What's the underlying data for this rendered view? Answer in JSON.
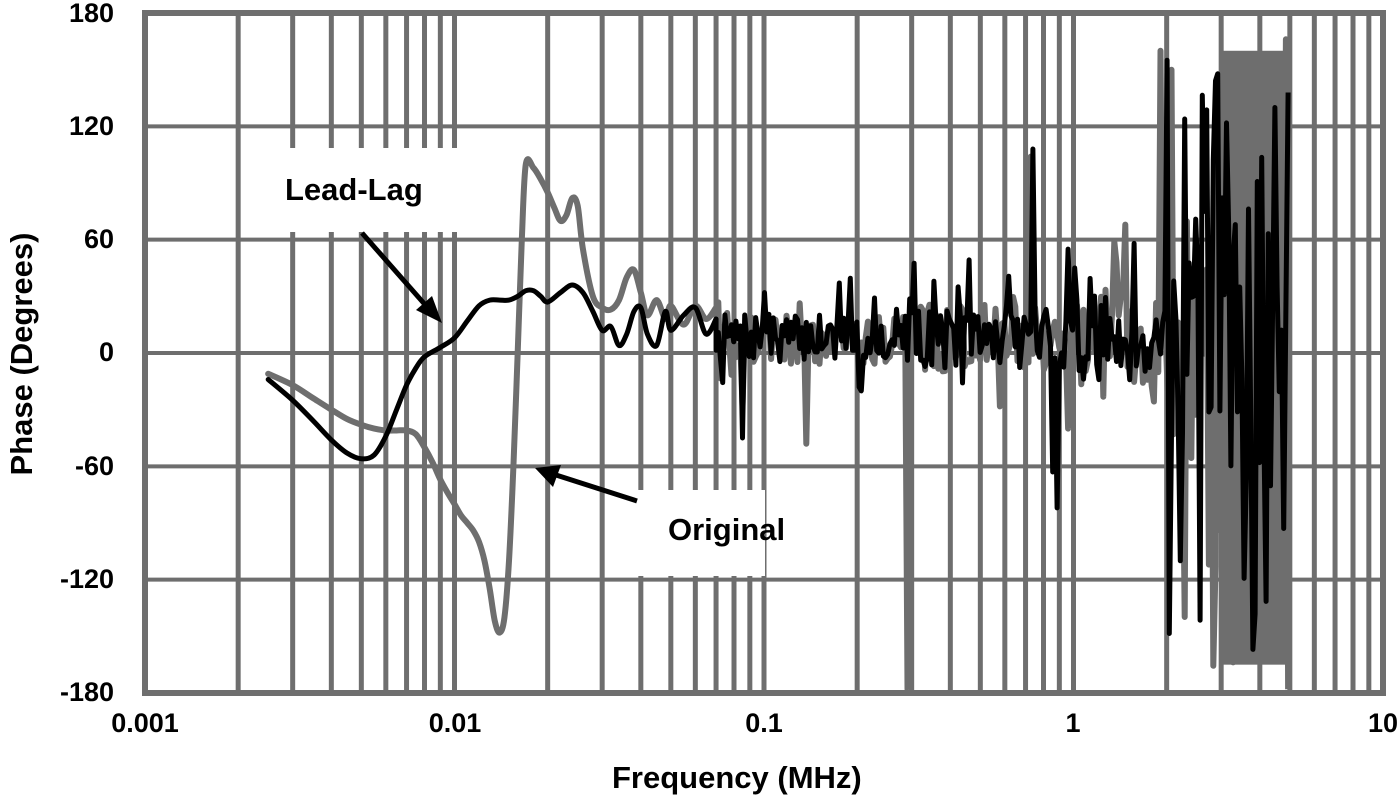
{
  "chart_data": {
    "type": "line",
    "title": "",
    "xlabel": "Frequency (MHz)",
    "ylabel": "Phase (Degrees)",
    "xscale": "log",
    "xlim": [
      0.001,
      10
    ],
    "ylim": [
      -180,
      180
    ],
    "grid": true,
    "legend": "none (inline annotations with arrows)",
    "x_ticks": [
      "0.001",
      "0.01",
      "0.1",
      "1",
      "10"
    ],
    "y_ticks": [
      "180",
      "120",
      "60",
      "0",
      "-60",
      "-120",
      "-180"
    ],
    "annotations": [
      {
        "text": "Lead-Lag",
        "points_to": "black curve near 0.0098 MHz, ~18°"
      },
      {
        "text": "Original",
        "points_to": "gray curve near 0.015 MHz, -60°"
      }
    ],
    "series": [
      {
        "name": "Lead-Lag",
        "color": "#000000",
        "smooth_x": [
          0.0025,
          0.003,
          0.0035,
          0.004,
          0.0045,
          0.005,
          0.0055,
          0.006,
          0.0065,
          0.007,
          0.0075,
          0.008,
          0.009,
          0.01,
          0.011,
          0.012,
          0.013,
          0.014,
          0.015,
          0.016,
          0.017,
          0.018,
          0.019,
          0.02,
          0.022,
          0.024,
          0.026,
          0.028,
          0.03,
          0.032,
          0.034,
          0.036,
          0.038,
          0.04,
          0.042,
          0.045,
          0.048,
          0.05,
          0.055,
          0.06,
          0.065,
          0.07
        ],
        "smooth_y": [
          -14,
          -25,
          -36,
          -46,
          -53,
          -56,
          -54,
          -44,
          -30,
          -17,
          -8,
          -2,
          3,
          8,
          17,
          25,
          28,
          28,
          28,
          30,
          33,
          33,
          30,
          27,
          32,
          36,
          32,
          22,
          12,
          14,
          4,
          10,
          22,
          24,
          10,
          4,
          22,
          12,
          20,
          24,
          10,
          18
        ],
        "noise_from_mhz": 0.07,
        "noise_to_mhz": 5,
        "spikes": [
          {
            "x": 0.085,
            "y": -45
          },
          {
            "x": 0.1,
            "y": 32
          },
          {
            "x": 0.15,
            "y": 20
          },
          {
            "x": 0.2,
            "y": -18
          },
          {
            "x": 0.35,
            "y": 38
          },
          {
            "x": 0.42,
            "y": 35
          },
          {
            "x": 0.6,
            "y": 25
          },
          {
            "x": 0.73,
            "y": 108
          },
          {
            "x": 0.85,
            "y": -63
          },
          {
            "x": 0.88,
            "y": -82
          },
          {
            "x": 0.95,
            "y": 55
          },
          {
            "x": 1.0,
            "y": 45
          },
          {
            "x": 1.55,
            "y": 58
          },
          {
            "x": 1.98,
            "y": 155
          },
          {
            "x": 2.2,
            "y": -110
          }
        ]
      },
      {
        "name": "Original",
        "color": "#6e6e6e",
        "smooth_x": [
          0.0025,
          0.003,
          0.0035,
          0.004,
          0.0045,
          0.005,
          0.0055,
          0.006,
          0.0065,
          0.007,
          0.0075,
          0.008,
          0.0085,
          0.009,
          0.0095,
          0.01,
          0.0105,
          0.011,
          0.0115,
          0.012,
          0.0125,
          0.013,
          0.0135,
          0.014,
          0.0145,
          0.015,
          0.0155,
          0.016,
          0.0165,
          0.017,
          0.018,
          0.019,
          0.02,
          0.021,
          0.022,
          0.023,
          0.024,
          0.025,
          0.026,
          0.028,
          0.03,
          0.032,
          0.034,
          0.036,
          0.038,
          0.04,
          0.042,
          0.045,
          0.048,
          0.05,
          0.055,
          0.06,
          0.065,
          0.07
        ],
        "smooth_y": [
          -11,
          -17,
          -24,
          -30,
          -35,
          -38,
          -40,
          -41,
          -41,
          -41,
          -43,
          -50,
          -58,
          -67,
          -74,
          -80,
          -86,
          -90,
          -94,
          -100,
          -110,
          -125,
          -142,
          -148,
          -140,
          -110,
          -60,
          0,
          60,
          100,
          98,
          92,
          85,
          77,
          70,
          73,
          82,
          78,
          55,
          30,
          24,
          23,
          28,
          40,
          44,
          32,
          20,
          28,
          18,
          25,
          15,
          25,
          18,
          24
        ]
      }
    ]
  },
  "axes": {
    "y_ticks": [
      "180",
      "120",
      "60",
      "0",
      "-60",
      "-120",
      "-180"
    ],
    "x_ticks": [
      "0.001",
      "0.01",
      "0.1",
      "1",
      "10"
    ],
    "x_title": "Frequency (MHz)",
    "y_title": "Phase (Degrees)"
  },
  "annotations": {
    "lead_lag": "Lead-Lag",
    "original": "Original"
  },
  "colors": {
    "grid": "#6e6e6e",
    "lead_lag": "#000000",
    "original": "#6e6e6e"
  }
}
